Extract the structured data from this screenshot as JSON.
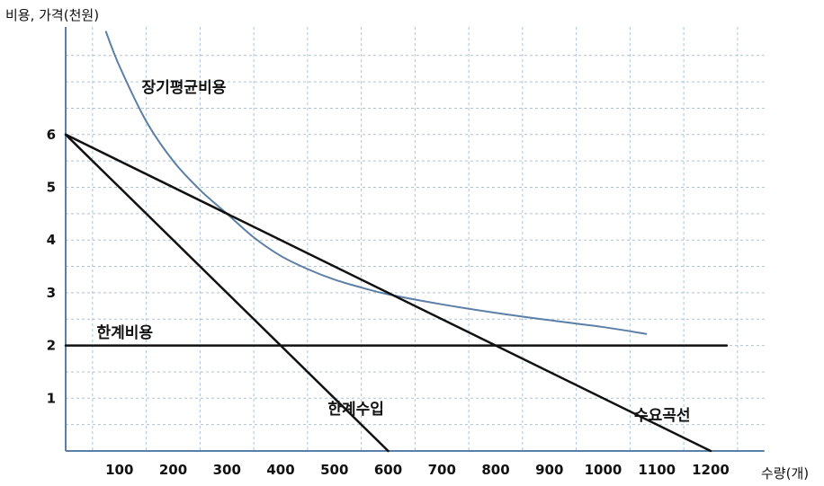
{
  "chart_data": {
    "type": "line",
    "ylabel": "비용, 가격(천원)",
    "xlabel": "수량(개)",
    "xlim": [
      0,
      1300
    ],
    "ylim": [
      0,
      7.5
    ],
    "x_ticks": [
      100,
      200,
      300,
      400,
      500,
      600,
      700,
      800,
      900,
      1000,
      1100,
      1200
    ],
    "y_ticks": [
      1,
      2,
      3,
      4,
      5,
      6
    ],
    "grid": true,
    "series": [
      {
        "name": "장기평균비용",
        "color": "#5b7fa6",
        "points": [
          [
            75,
            7.95
          ],
          [
            100,
            7.3
          ],
          [
            150,
            6.25
          ],
          [
            200,
            5.5
          ],
          [
            250,
            4.95
          ],
          [
            300,
            4.5
          ],
          [
            350,
            4.05
          ],
          [
            400,
            3.7
          ],
          [
            450,
            3.45
          ],
          [
            500,
            3.25
          ],
          [
            550,
            3.1
          ],
          [
            600,
            2.97
          ],
          [
            700,
            2.78
          ],
          [
            800,
            2.62
          ],
          [
            900,
            2.48
          ],
          [
            1000,
            2.35
          ],
          [
            1080,
            2.22
          ]
        ]
      },
      {
        "name": "수요곡선",
        "color": "#111111",
        "points": [
          [
            0,
            6
          ],
          [
            1200,
            0
          ]
        ]
      },
      {
        "name": "한계수입",
        "color": "#111111",
        "points": [
          [
            0,
            6
          ],
          [
            600,
            0
          ]
        ]
      },
      {
        "name": "한계비용",
        "color": "#111111",
        "points": [
          [
            0,
            2
          ],
          [
            1230,
            2
          ]
        ]
      }
    ],
    "annotations": [
      {
        "text": "장기평균비용",
        "x": 220,
        "y": 6.9
      },
      {
        "text": "한계비용",
        "x": 110,
        "y": 2.25
      },
      {
        "text": "한계수입",
        "x": 540,
        "y": 0.8
      },
      {
        "text": "수요곡선",
        "x": 1110,
        "y": 0.68
      }
    ]
  }
}
